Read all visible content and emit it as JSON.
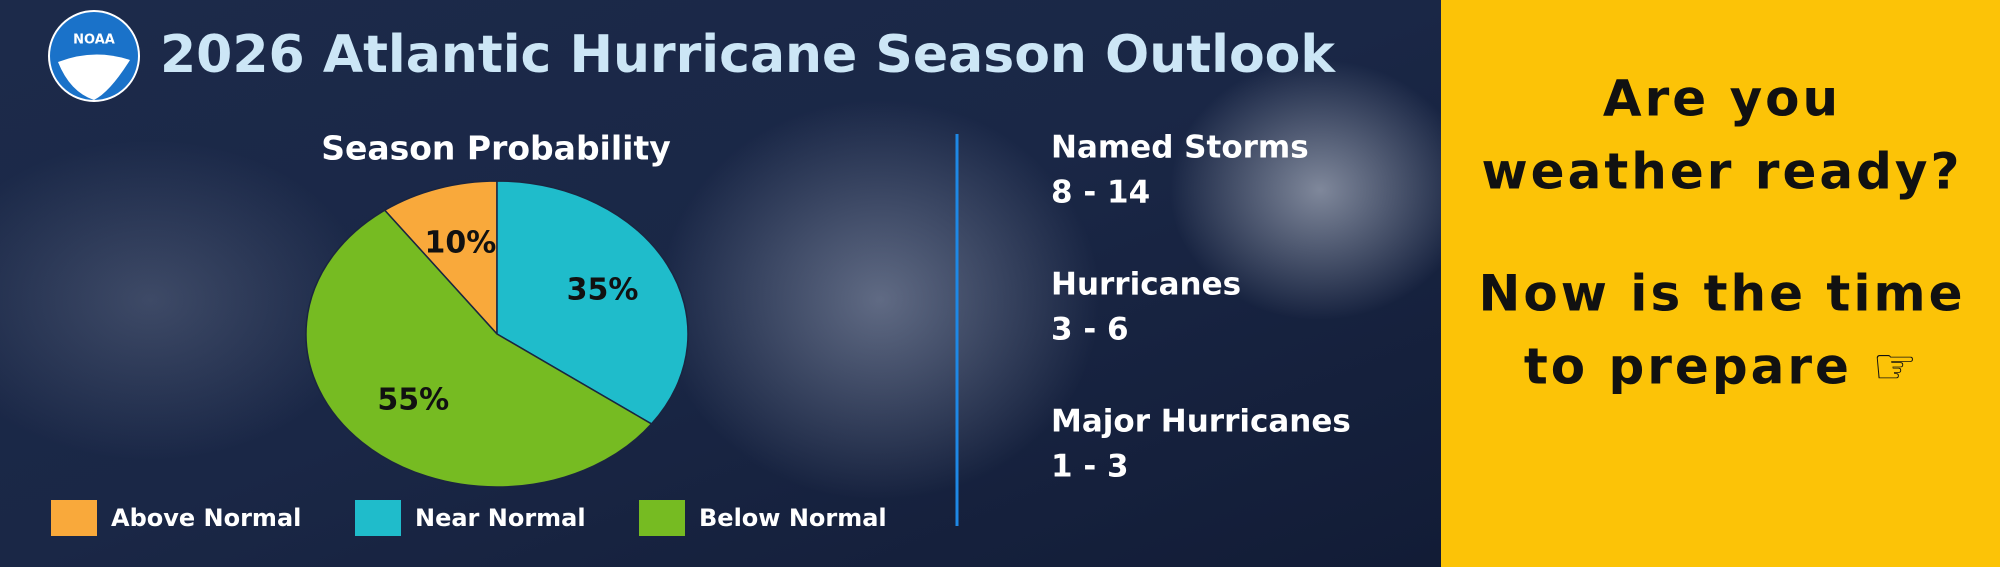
{
  "header": {
    "logo_text": "NOAA",
    "title": "2026 Atlantic Hurricane Season Outlook"
  },
  "chart_data": {
    "type": "pie",
    "title": "Season Probability",
    "categories": [
      "Above Normal",
      "Near Normal",
      "Below Normal"
    ],
    "values": [
      10,
      35,
      55
    ],
    "value_labels": [
      "10%",
      "35%",
      "55%"
    ],
    "colors": [
      "#f9a93b",
      "#1fbccb",
      "#76bb22"
    ]
  },
  "stats": [
    {
      "label": "Named Storms",
      "value": "8 - 14"
    },
    {
      "label": "Hurricanes",
      "value": "3 - 6"
    },
    {
      "label": "Major Hurricanes",
      "value": "1 - 3"
    }
  ],
  "callout": {
    "lines": [
      "Are you",
      "weather ready?",
      "Now is the time",
      "to prepare ☞"
    ]
  }
}
